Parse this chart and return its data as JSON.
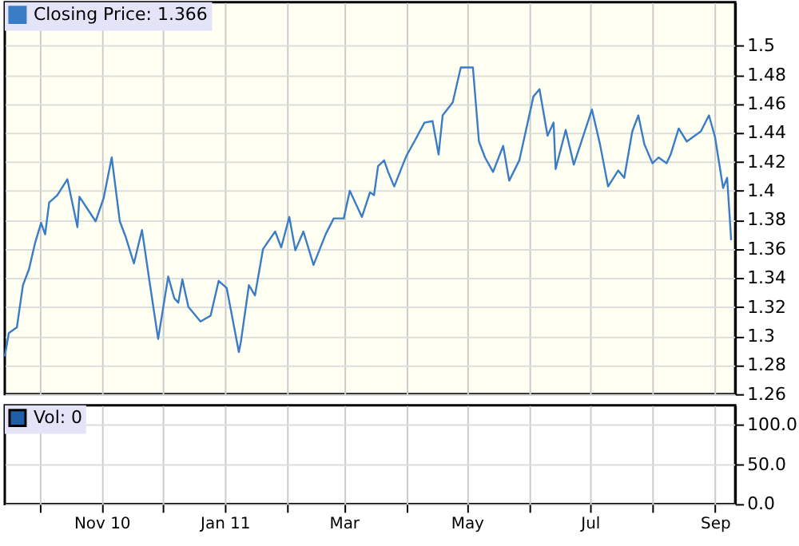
{
  "chart_data": [
    {
      "type": "line",
      "x": [
        "2010-09-14",
        "2010-09-16",
        "2010-09-20",
        "2010-09-23",
        "2010-09-26",
        "2010-09-29",
        "2010-10-02",
        "2010-10-04",
        "2010-10-06",
        "2010-10-10",
        "2010-10-15",
        "2010-10-20",
        "2010-10-21",
        "2010-10-29",
        "2010-11-02",
        "2010-11-06",
        "2010-11-10",
        "2010-11-13",
        "2010-11-17",
        "2010-11-21",
        "2010-11-25",
        "2010-11-29",
        "2010-12-04",
        "2010-12-07",
        "2010-12-09",
        "2010-12-11",
        "2010-12-14",
        "2010-12-20",
        "2010-12-25",
        "2010-12-29",
        "2011-01-02",
        "2011-01-08",
        "2011-01-09",
        "2011-01-13",
        "2011-01-16",
        "2011-01-20",
        "2011-01-26",
        "2011-01-29",
        "2011-02-02",
        "2011-02-05",
        "2011-02-09",
        "2011-02-14",
        "2011-02-20",
        "2011-02-24",
        "2011-03-01",
        "2011-03-04",
        "2011-03-10",
        "2011-03-14",
        "2011-03-16",
        "2011-03-18",
        "2011-03-21",
        "2011-03-23",
        "2011-03-26",
        "2011-04-01",
        "2011-04-05",
        "2011-04-10",
        "2011-04-14",
        "2011-04-17",
        "2011-04-19",
        "2011-04-24",
        "2011-04-28",
        "2011-05-04",
        "2011-05-07",
        "2011-05-10",
        "2011-05-14",
        "2011-05-19",
        "2011-05-22",
        "2011-05-27",
        "2011-06-03",
        "2011-06-06",
        "2011-06-10",
        "2011-06-13",
        "2011-06-14",
        "2011-06-19",
        "2011-06-23",
        "2011-07-02",
        "2011-07-06",
        "2011-07-10",
        "2011-07-15",
        "2011-07-18",
        "2011-07-22",
        "2011-07-25",
        "2011-07-28",
        "2011-08-01",
        "2011-08-04",
        "2011-08-08",
        "2011-08-10",
        "2011-08-14",
        "2011-08-18",
        "2011-08-25",
        "2011-08-29",
        "2011-09-01",
        "2011-09-05",
        "2011-09-07",
        "2011-09-09"
      ],
      "series": [
        {
          "name": "Closing Price: 1.366",
          "color": "#3a7cc6",
          "values": [
            1.286,
            1.302,
            1.306,
            1.335,
            1.346,
            1.364,
            1.378,
            1.37,
            1.392,
            1.397,
            1.408,
            1.375,
            1.396,
            1.379,
            1.395,
            1.423,
            1.379,
            1.368,
            1.35,
            1.373,
            1.335,
            1.298,
            1.341,
            1.326,
            1.323,
            1.339,
            1.32,
            1.31,
            1.314,
            1.338,
            1.333,
            1.289,
            1.296,
            1.335,
            1.328,
            1.36,
            1.372,
            1.361,
            1.382,
            1.359,
            1.372,
            1.349,
            1.37,
            1.381,
            1.381,
            1.4,
            1.382,
            1.399,
            1.397,
            1.417,
            1.421,
            1.413,
            1.403,
            1.424,
            1.434,
            1.447,
            1.448,
            1.425,
            1.452,
            1.461,
            1.485,
            1.485,
            1.434,
            1.423,
            1.413,
            1.431,
            1.407,
            1.421,
            1.465,
            1.47,
            1.438,
            1.447,
            1.415,
            1.442,
            1.418,
            1.456,
            1.432,
            1.403,
            1.414,
            1.409,
            1.441,
            1.452,
            1.432,
            1.419,
            1.423,
            1.419,
            1.425,
            1.443,
            1.434,
            1.441,
            1.452,
            1.437,
            1.402,
            1.409,
            1.366
          ]
        }
      ],
      "xlim": [
        "2010-09-14",
        "2011-09-11"
      ],
      "xticks": [
        {
          "value": "2010-10-01",
          "label": null
        },
        {
          "value": "2010-11-01",
          "label": null
        },
        {
          "value": "2010-12-01",
          "label": null
        },
        {
          "value": "2011-01-01",
          "label": null
        },
        {
          "value": "2011-02-01",
          "label": null
        },
        {
          "value": "2011-03-01",
          "label": null
        },
        {
          "value": "2011-04-01",
          "label": null
        },
        {
          "value": "2011-05-01",
          "label": null
        },
        {
          "value": "2011-06-01",
          "label": null
        },
        {
          "value": "2011-07-01",
          "label": null
        },
        {
          "value": "2011-08-01",
          "label": null
        },
        {
          "value": "2011-09-01",
          "label": null
        }
      ],
      "ylim": [
        1.26,
        1.53
      ],
      "yticks": [
        1.26,
        1.28,
        1.3,
        1.32,
        1.34,
        1.36,
        1.38,
        1.4,
        1.42,
        1.44,
        1.46,
        1.48,
        1.5
      ],
      "grid": true,
      "legend": "top left",
      "tick_labels": "y"
    },
    {
      "type": "bar",
      "x": [
        "2011-09-09"
      ],
      "series": [
        {
          "name": "Vol: 0",
          "color": "#1f5fa8",
          "values": [
            0
          ]
        }
      ],
      "xlim": [
        "2010-09-14",
        "2011-09-11"
      ],
      "xticks": [
        {
          "value": "2010-10-01",
          "label": null
        },
        {
          "value": "2010-11-01",
          "label": "Nov 10"
        },
        {
          "value": "2010-12-01",
          "label": null
        },
        {
          "value": "2011-01-01",
          "label": "Jan 11"
        },
        {
          "value": "2011-02-01",
          "label": null
        },
        {
          "value": "2011-03-01",
          "label": "Mar"
        },
        {
          "value": "2011-04-01",
          "label": null
        },
        {
          "value": "2011-05-01",
          "label": "May"
        },
        {
          "value": "2011-06-01",
          "label": null
        },
        {
          "value": "2011-07-01",
          "label": "Jul"
        },
        {
          "value": "2011-08-01",
          "label": null
        },
        {
          "value": "2011-09-01",
          "label": "Sep"
        }
      ],
      "ylim": [
        0,
        125
      ],
      "yticks": [
        {
          "value": 0,
          "label": "0.0"
        },
        {
          "value": 50,
          "label": "50.0"
        },
        {
          "value": 100,
          "label": "100.0"
        }
      ],
      "grid": true,
      "legend": "top left"
    }
  ]
}
